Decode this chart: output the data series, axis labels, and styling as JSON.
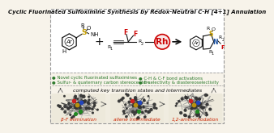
{
  "title": "Cyclic Fluorinated Sulfoximine Synthesis by Redox-Neutral C-H [4+1] Annulation",
  "bg_color": "#f7f3ea",
  "top_bg": "#ffffff",
  "bottom_bg": "#f0ece0",
  "border_color": "#999999",
  "highlight_color": "#cc0000",
  "green_color": "#2d7a2d",
  "black_color": "#111111",
  "bullet_points_left": [
    "Novel cyclic fluorinated sulfoximines",
    "Sulfur- & quaternary carbon stereocenters"
  ],
  "bullet_points_right": [
    "C-H & C-F bond activations",
    "E-selectivity & diastereoselectivity"
  ],
  "computed_text": "computed key transition states and intermediates",
  "labels_bottom": [
    "β-F elimination",
    "allene intermediate",
    "1,2-aminorhodation"
  ],
  "label_color": "#cc2200",
  "label_fontsize": 4.2,
  "rh_circle_color": "#cc0000",
  "rh_text": "Rh",
  "title_fontsize": 5.0,
  "bullet_fontsize": 3.9,
  "computed_fontsize": 4.6
}
